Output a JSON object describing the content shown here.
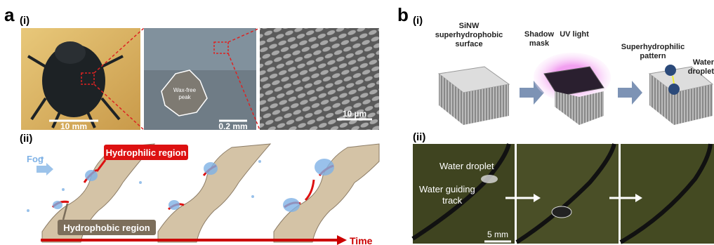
{
  "panel_a": {
    "label": "a",
    "part_i": {
      "label": "(i)",
      "photos": [
        {
          "scale": "10 mm"
        },
        {
          "scale": "0.2 mm",
          "annotation": [
            "Wax-free",
            "peak"
          ]
        },
        {
          "scale": "10 µm"
        }
      ]
    },
    "part_ii": {
      "label": "(ii)",
      "fog": "Fog",
      "hydrophilic": "Hydrophilic region",
      "hydrophobic": "Hydrophobic region",
      "time": "Time"
    }
  },
  "panel_b": {
    "label": "b",
    "part_i": {
      "label": "(i)",
      "surface": [
        "SiNW",
        "superhydrophobic",
        "surface"
      ],
      "mask": [
        "Shadow",
        "mask"
      ],
      "uv": "UV light",
      "pattern": [
        "Superhydrophilic",
        "pattern"
      ],
      "droplet": [
        "Water",
        "droplet"
      ]
    },
    "part_ii": {
      "label": "(ii)",
      "droplet": "Water droplet",
      "track": [
        "Water guiding",
        "track"
      ],
      "scale": "5 mm"
    }
  }
}
